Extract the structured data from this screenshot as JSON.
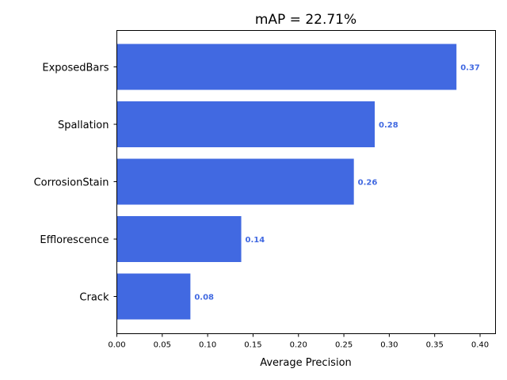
{
  "chart_data": {
    "type": "bar",
    "orientation": "horizontal",
    "title": "mAP = 22.71%",
    "xlabel": "Average Precision",
    "ylabel": "",
    "categories": [
      "ExposedBars",
      "Spallation",
      "CorrosionStain",
      "Efflorescence",
      "Crack"
    ],
    "values": [
      0.374,
      0.284,
      0.261,
      0.137,
      0.081
    ],
    "value_labels": [
      "0.37",
      "0.28",
      "0.26",
      "0.14",
      "0.08"
    ],
    "xlim": [
      0,
      0.417
    ],
    "xticks": [
      0.0,
      0.05,
      0.1,
      0.15,
      0.2,
      0.25,
      0.3,
      0.35,
      0.4
    ],
    "xtick_labels": [
      "0.00",
      "0.05",
      "0.10",
      "0.15",
      "0.20",
      "0.25",
      "0.30",
      "0.35",
      "0.40"
    ],
    "grid": false,
    "legend": "none",
    "bar_color": "#4169e1"
  }
}
